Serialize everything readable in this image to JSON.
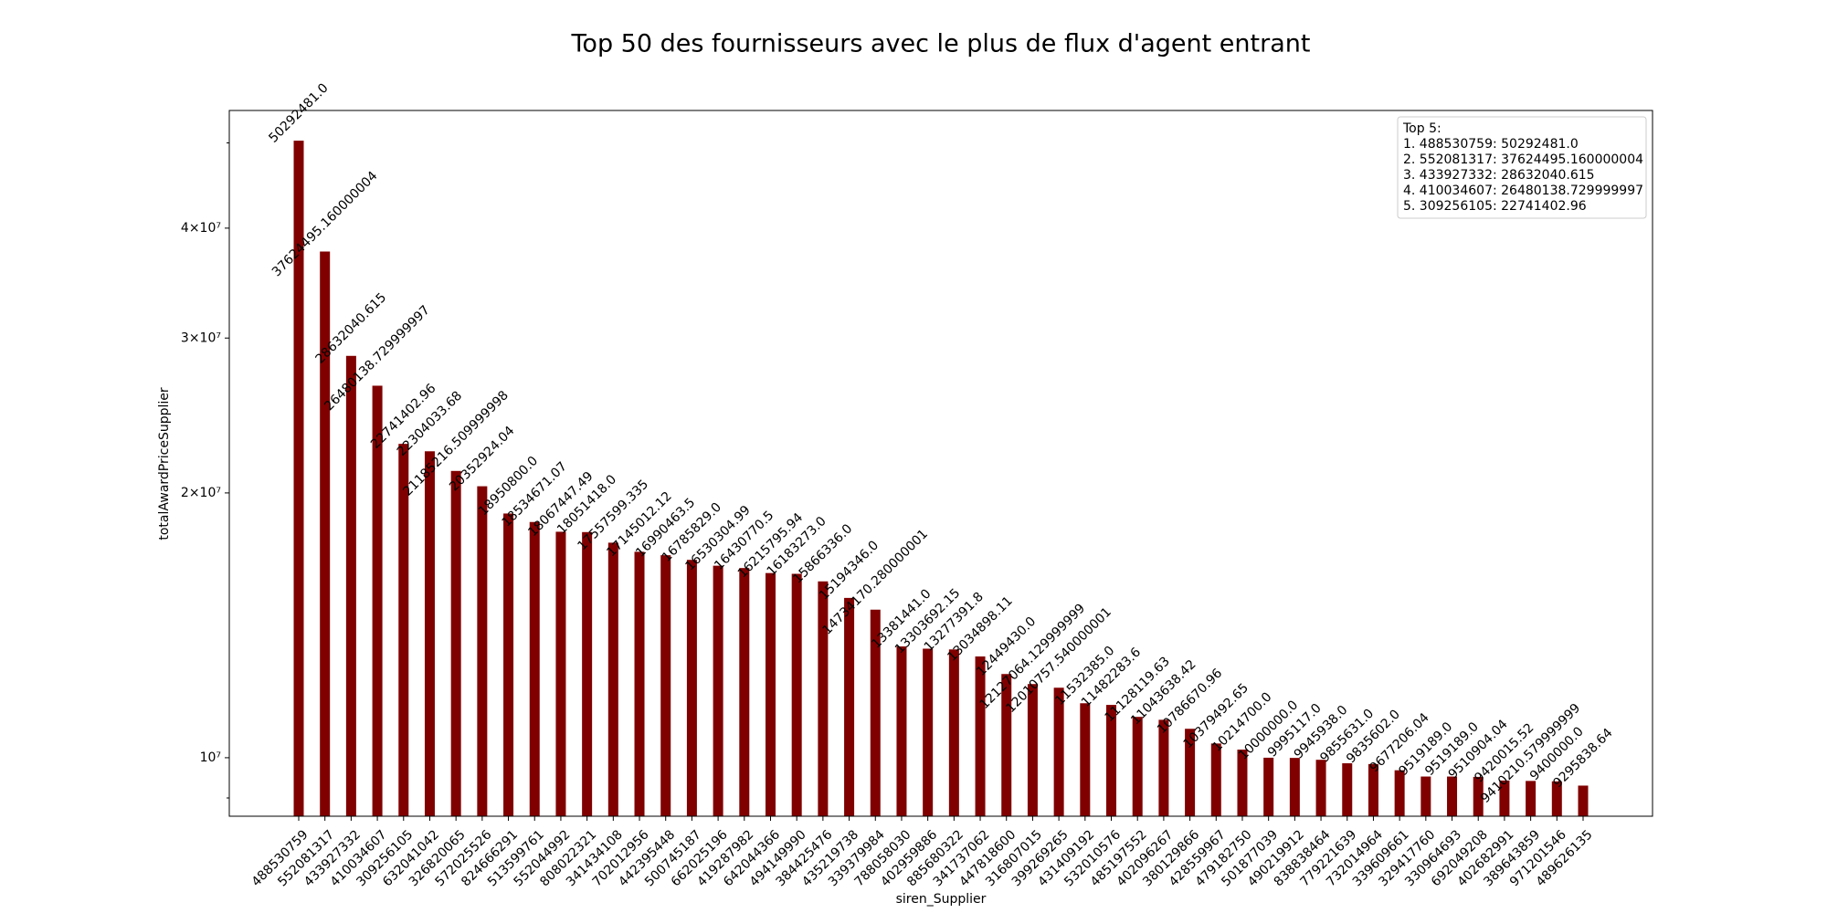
{
  "chart_data": {
    "type": "bar",
    "title": "Top 50 des fournisseurs avec le plus de flux d'agent entrant",
    "x_label": "siren_Supplier",
    "y_label": "totalAwardPriceSupplier",
    "log_scale": true,
    "color": "#800000",
    "categories": [
      "488530759",
      "552081317",
      "433927332",
      "410034607",
      "309256105",
      "632041042",
      "326820065",
      "572025526",
      "824666291",
      "513599761",
      "552044992",
      "808022321",
      "341434108",
      "702012956",
      "442395448",
      "500745187",
      "662025196",
      "419287982",
      "642044366",
      "494149990",
      "384425476",
      "435219738",
      "339379984",
      "788058030",
      "402959886",
      "885680322",
      "341737062",
      "447818600",
      "316807015",
      "399269265",
      "431409192",
      "532010576",
      "485197552",
      "402096267",
      "380129866",
      "428559967",
      "479182750",
      "501877039",
      "490219912",
      "838838464",
      "779221639",
      "732014964",
      "339609661",
      "329417760",
      "330964693",
      "692049208",
      "402682991",
      "389643859",
      "971201546",
      "489626135"
    ],
    "values": [
      50292481.0,
      37624495.160000004,
      28632040.615,
      26480138.729999997,
      22741402.96,
      22304033.68,
      21185216.509999998,
      20352924.04,
      18950800.0,
      18534671.07,
      18067447.49,
      18051418.0,
      17557599.335,
      17145012.12,
      16990463.5,
      16785829.0,
      16530304.99,
      16430770.5,
      16215795.94,
      16183273.0,
      15866336.0,
      15194346.0,
      14734170.280000001,
      13381441.0,
      13303692.15,
      13277391.8,
      13034898.11,
      12449430.0,
      12127064.129999999,
      12010757.540000001,
      11532385.0,
      11482283.6,
      11128119.63,
      11043638.42,
      10786670.96,
      10379492.65,
      10214700.0,
      10000000.0,
      9995117.0,
      9945938.0,
      9855631.0,
      9835602.0,
      9677206.04,
      9519189.0,
      9519189.0,
      9510904.04,
      9420015.52,
      9410210.579999998,
      9400000.0,
      9295838.64
    ],
    "value_labels": [
      "50292481.0",
      "37624495.160000004",
      "28632040.615",
      "26480138.729999997",
      "22741402.96",
      "22304033.68",
      "21185216.509999998",
      "20352924.04",
      "18950800.0",
      "18534671.07",
      "18067447.49",
      "18051418.0",
      "17557599.335",
      "17145012.12",
      "16990463.5",
      "16785829.0",
      "16530304.99",
      "16430770.5",
      "16215795.94",
      "16183273.0",
      "15866336.0",
      "15194346.0",
      "14734170.280000001",
      "13381441.0",
      "13303692.15",
      "13277391.8",
      "13034898.11",
      "12449430.0",
      "12127064.129999999",
      "12010757.540000001",
      "11532385.0",
      "11482283.6",
      "11128119.63",
      "11043638.42",
      "10786670.96",
      "10379492.65",
      "10214700.0",
      "10000000.0",
      "9995117.0",
      "9945938.0",
      "9855631.0",
      "9835602.0",
      "9677206.04",
      "9519189.0",
      "9519189.0",
      "9510904.04",
      "9420015.52",
      "9410210.579999999",
      "9400000.0",
      "9295838.64"
    ],
    "ylim": [
      8580000,
      54300000
    ],
    "yticks": [
      {
        "value": 10000000,
        "label": "10⁷"
      },
      {
        "value": 20000000,
        "label": "2×10⁷"
      },
      {
        "value": 30000000,
        "label": "3×10⁷"
      },
      {
        "value": 40000000,
        "label": "4×10⁷"
      }
    ],
    "minor_yticks": [
      9000000,
      50000000
    ],
    "legend": {
      "position": "upper right",
      "title": "Top 5:",
      "entries": [
        "1. 488530759: 50292481.0",
        "2. 552081317: 37624495.160000004",
        "3. 433927332: 28632040.615",
        "4. 410034607: 26480138.729999997",
        "5. 309256105: 22741402.96"
      ]
    }
  }
}
